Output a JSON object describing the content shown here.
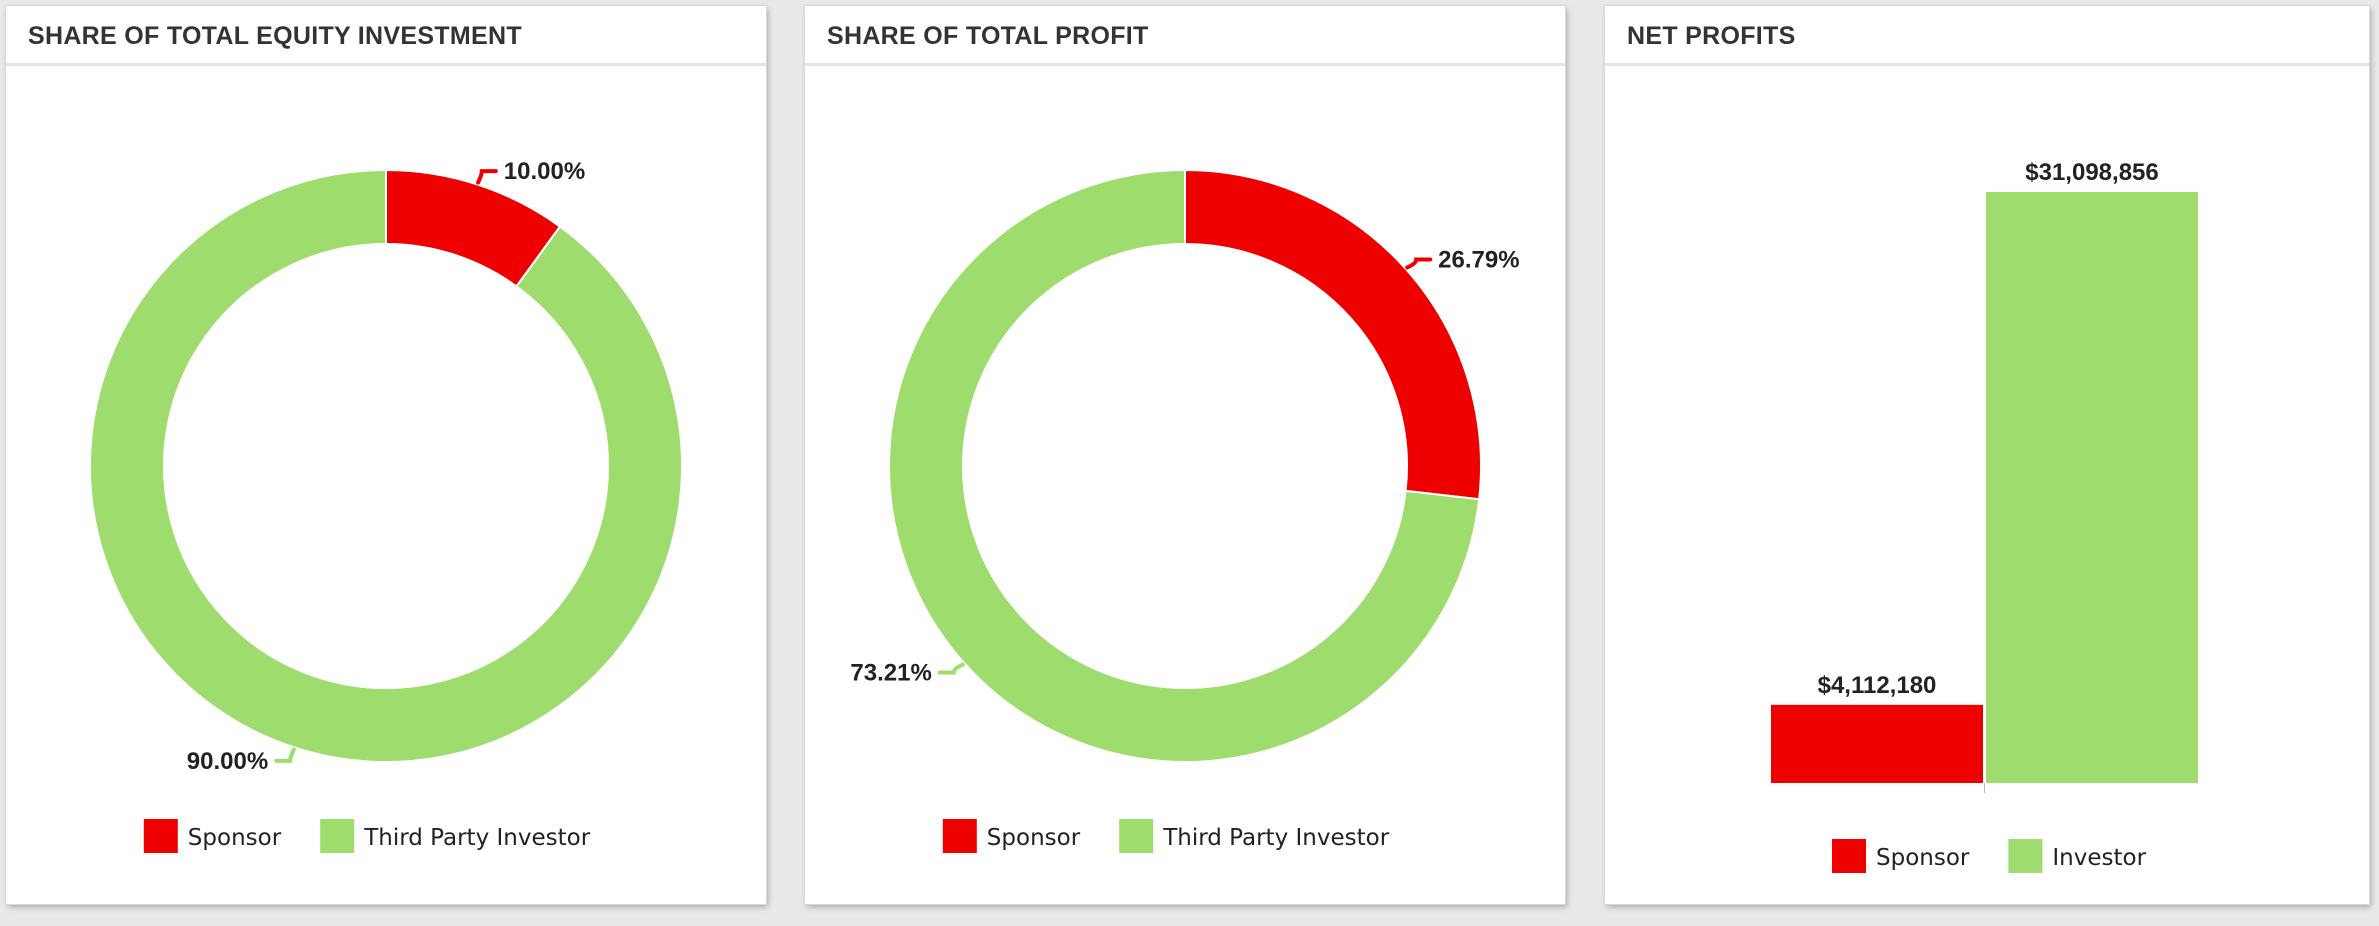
{
  "colors": {
    "sponsor": "#ee0000",
    "investor": "#9fdc6e"
  },
  "panels": [
    {
      "title": "SHARE OF TOTAL EQUITY INVESTMENT"
    },
    {
      "title": "SHARE OF TOTAL PROFIT"
    },
    {
      "title": "NET PROFITS"
    }
  ],
  "chart_data": [
    {
      "type": "pie",
      "title": "SHARE OF TOTAL EQUITY INVESTMENT",
      "categories": [
        "Sponsor",
        "Third Party Investor"
      ],
      "values": [
        10.0,
        90.0
      ],
      "data_labels": [
        "10.00%",
        "90.00%"
      ],
      "legend": {
        "position": "bottom",
        "items": [
          "Sponsor",
          "Third Party Investor"
        ]
      }
    },
    {
      "type": "pie",
      "title": "SHARE OF TOTAL PROFIT",
      "categories": [
        "Sponsor",
        "Third Party Investor"
      ],
      "values": [
        26.79,
        73.21
      ],
      "data_labels": [
        "26.79%",
        "73.21%"
      ],
      "legend": {
        "position": "bottom",
        "items": [
          "Sponsor",
          "Third Party Investor"
        ]
      }
    },
    {
      "type": "bar",
      "title": "NET PROFITS",
      "categories": [
        "Sponsor",
        "Investor"
      ],
      "values": [
        4112180,
        31098856
      ],
      "data_labels": [
        "$4,112,180",
        "$31,098,856"
      ],
      "ylim": [
        0,
        33000000
      ],
      "grid": false,
      "legend": {
        "position": "bottom",
        "items": [
          "Sponsor",
          "Investor"
        ]
      }
    }
  ]
}
